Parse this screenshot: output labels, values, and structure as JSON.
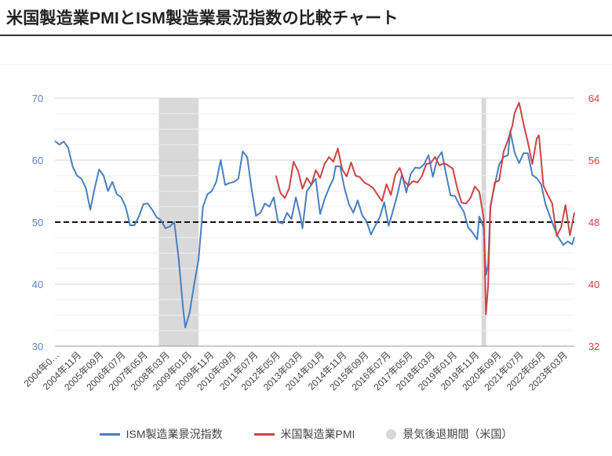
{
  "page_title": "米国製造業PMIとISM製造業景況指数の比較チャート",
  "colors": {
    "ism": "#4a7fc1",
    "pmi": "#cc4444",
    "recession": "#d9d9d9",
    "threshold": "#111111"
  },
  "chart_data": {
    "type": "line",
    "title": "米国製造業PMIとISM製造業景況指数の比較チャート",
    "x_start": "2004-01",
    "x_end": "2023-08",
    "x_tick_labels": [
      "2004年0…",
      "2004年11月",
      "2005年09月",
      "2006年07月",
      "2007年05月",
      "2008年03月",
      "2009年01月",
      "2009年11月",
      "2010年09月",
      "2011年07月",
      "2012年05月",
      "2013年03月",
      "2014年01月",
      "2014年11月",
      "2015年09月",
      "2016年07月",
      "2017年05月",
      "2018年03月",
      "2019年01月",
      "2019年11月",
      "2020年09月",
      "2021年07月",
      "2022年05月",
      "2023年03月"
    ],
    "x_tick_months": [
      "2004-01",
      "2004-11",
      "2005-09",
      "2006-07",
      "2007-05",
      "2008-03",
      "2009-01",
      "2009-11",
      "2010-09",
      "2011-07",
      "2012-05",
      "2013-03",
      "2014-01",
      "2014-11",
      "2015-09",
      "2016-07",
      "2017-05",
      "2018-03",
      "2019-01",
      "2019-11",
      "2020-09",
      "2021-07",
      "2022-05",
      "2023-03"
    ],
    "y_left": {
      "ticks": [
        30,
        40,
        50,
        60,
        70
      ],
      "ylim": [
        30,
        70
      ]
    },
    "y_right": {
      "ticks": [
        32,
        40,
        48,
        56,
        64
      ],
      "ylim": [
        32,
        64
      ]
    },
    "grid": true,
    "threshold_line": {
      "axis": "left",
      "value": 50,
      "style": "dashed"
    },
    "recession_periods": [
      {
        "start": "2007-12",
        "end": "2009-06"
      },
      {
        "start": "2020-02",
        "end": "2020-04"
      }
    ],
    "series": [
      {
        "name": "ISM製造業景況指数",
        "axis": "left",
        "points": [
          [
            "2004-01",
            63.1
          ],
          [
            "2004-03",
            62.5
          ],
          [
            "2004-05",
            63.0
          ],
          [
            "2004-07",
            62.0
          ],
          [
            "2004-09",
            59.0
          ],
          [
            "2004-11",
            57.5
          ],
          [
            "2005-01",
            57.0
          ],
          [
            "2005-03",
            55.5
          ],
          [
            "2005-05",
            52.0
          ],
          [
            "2005-07",
            55.5
          ],
          [
            "2005-09",
            58.5
          ],
          [
            "2005-11",
            57.5
          ],
          [
            "2006-01",
            55.0
          ],
          [
            "2006-03",
            56.5
          ],
          [
            "2006-05",
            54.5
          ],
          [
            "2006-07",
            54.0
          ],
          [
            "2006-09",
            52.5
          ],
          [
            "2006-11",
            49.5
          ],
          [
            "2007-01",
            49.5
          ],
          [
            "2007-03",
            50.9
          ],
          [
            "2007-05",
            52.9
          ],
          [
            "2007-07",
            53.0
          ],
          [
            "2007-09",
            52.0
          ],
          [
            "2007-11",
            50.8
          ],
          [
            "2008-01",
            50.3
          ],
          [
            "2008-03",
            49.0
          ],
          [
            "2008-05",
            49.3
          ],
          [
            "2008-07",
            50.0
          ],
          [
            "2008-09",
            44.0
          ],
          [
            "2008-11",
            36.0
          ],
          [
            "2008-12",
            33.0
          ],
          [
            "2009-02",
            35.5
          ],
          [
            "2009-04",
            40.0
          ],
          [
            "2009-06",
            44.0
          ],
          [
            "2009-08",
            52.5
          ],
          [
            "2009-10",
            54.5
          ],
          [
            "2009-12",
            55.0
          ],
          [
            "2010-02",
            56.5
          ],
          [
            "2010-04",
            60.0
          ],
          [
            "2010-06",
            56.0
          ],
          [
            "2010-08",
            56.3
          ],
          [
            "2010-10",
            56.5
          ],
          [
            "2010-12",
            57.0
          ],
          [
            "2011-02",
            61.4
          ],
          [
            "2011-04",
            60.5
          ],
          [
            "2011-06",
            55.3
          ],
          [
            "2011-08",
            51.0
          ],
          [
            "2011-10",
            51.5
          ],
          [
            "2011-12",
            53.0
          ],
          [
            "2012-02",
            52.5
          ],
          [
            "2012-04",
            54.0
          ],
          [
            "2012-06",
            50.0
          ],
          [
            "2012-08",
            49.8
          ],
          [
            "2012-10",
            51.5
          ],
          [
            "2012-12",
            50.5
          ],
          [
            "2013-02",
            54.0
          ],
          [
            "2013-04",
            51.0
          ],
          [
            "2013-05",
            49.0
          ],
          [
            "2013-07",
            55.0
          ],
          [
            "2013-09",
            56.0
          ],
          [
            "2013-11",
            57.0
          ],
          [
            "2014-01",
            51.3
          ],
          [
            "2014-03",
            53.7
          ],
          [
            "2014-05",
            55.5
          ],
          [
            "2014-07",
            57.0
          ],
          [
            "2014-08",
            59.0
          ],
          [
            "2014-10",
            59.0
          ],
          [
            "2014-12",
            55.5
          ],
          [
            "2015-02",
            52.9
          ],
          [
            "2015-04",
            51.5
          ],
          [
            "2015-06",
            53.5
          ],
          [
            "2015-08",
            51.1
          ],
          [
            "2015-10",
            50.1
          ],
          [
            "2015-12",
            48.0
          ],
          [
            "2016-02",
            49.5
          ],
          [
            "2016-04",
            50.8
          ],
          [
            "2016-06",
            53.2
          ],
          [
            "2016-08",
            49.4
          ],
          [
            "2016-10",
            51.9
          ],
          [
            "2016-12",
            54.5
          ],
          [
            "2017-02",
            57.7
          ],
          [
            "2017-04",
            54.8
          ],
          [
            "2017-06",
            57.8
          ],
          [
            "2017-08",
            58.8
          ],
          [
            "2017-10",
            58.7
          ],
          [
            "2017-12",
            59.3
          ],
          [
            "2018-02",
            60.8
          ],
          [
            "2018-04",
            57.3
          ],
          [
            "2018-06",
            60.2
          ],
          [
            "2018-08",
            61.3
          ],
          [
            "2018-10",
            57.7
          ],
          [
            "2018-12",
            54.3
          ],
          [
            "2019-02",
            54.2
          ],
          [
            "2019-04",
            52.8
          ],
          [
            "2019-06",
            51.7
          ],
          [
            "2019-08",
            49.1
          ],
          [
            "2019-10",
            48.3
          ],
          [
            "2019-12",
            47.2
          ],
          [
            "2020-01",
            50.9
          ],
          [
            "2020-03",
            49.1
          ],
          [
            "2020-04",
            41.5
          ],
          [
            "2020-05",
            43.1
          ],
          [
            "2020-06",
            52.6
          ],
          [
            "2020-08",
            56.0
          ],
          [
            "2020-10",
            59.3
          ],
          [
            "2020-12",
            60.5
          ],
          [
            "2021-02",
            60.8
          ],
          [
            "2021-03",
            64.7
          ],
          [
            "2021-05",
            61.2
          ],
          [
            "2021-07",
            59.5
          ],
          [
            "2021-09",
            61.1
          ],
          [
            "2021-11",
            61.1
          ],
          [
            "2022-01",
            57.6
          ],
          [
            "2022-03",
            57.1
          ],
          [
            "2022-05",
            56.1
          ],
          [
            "2022-07",
            52.8
          ],
          [
            "2022-09",
            50.9
          ],
          [
            "2022-11",
            49.0
          ],
          [
            "2023-01",
            47.4
          ],
          [
            "2023-03",
            46.3
          ],
          [
            "2023-05",
            46.9
          ],
          [
            "2023-07",
            46.4
          ],
          [
            "2023-08",
            47.6
          ]
        ]
      },
      {
        "name": "米国製造業PMI",
        "axis": "right",
        "points": [
          [
            "2012-05",
            54.0
          ],
          [
            "2012-07",
            51.8
          ],
          [
            "2012-09",
            51.1
          ],
          [
            "2012-11",
            52.4
          ],
          [
            "2013-01",
            55.8
          ],
          [
            "2013-03",
            54.6
          ],
          [
            "2013-05",
            52.3
          ],
          [
            "2013-07",
            53.7
          ],
          [
            "2013-09",
            52.8
          ],
          [
            "2013-11",
            54.7
          ],
          [
            "2014-01",
            53.7
          ],
          [
            "2014-03",
            55.5
          ],
          [
            "2014-05",
            56.4
          ],
          [
            "2014-07",
            55.8
          ],
          [
            "2014-09",
            57.5
          ],
          [
            "2014-11",
            54.8
          ],
          [
            "2015-01",
            53.9
          ],
          [
            "2015-03",
            55.7
          ],
          [
            "2015-05",
            54.0
          ],
          [
            "2015-07",
            53.8
          ],
          [
            "2015-09",
            53.1
          ],
          [
            "2015-11",
            52.8
          ],
          [
            "2016-01",
            52.4
          ],
          [
            "2016-03",
            51.5
          ],
          [
            "2016-05",
            50.7
          ],
          [
            "2016-07",
            52.9
          ],
          [
            "2016-09",
            51.5
          ],
          [
            "2016-11",
            54.1
          ],
          [
            "2017-01",
            55.0
          ],
          [
            "2017-03",
            53.3
          ],
          [
            "2017-05",
            52.7
          ],
          [
            "2017-07",
            53.3
          ],
          [
            "2017-09",
            53.1
          ],
          [
            "2017-11",
            53.9
          ],
          [
            "2018-01",
            55.5
          ],
          [
            "2018-03",
            55.6
          ],
          [
            "2018-05",
            56.4
          ],
          [
            "2018-07",
            55.3
          ],
          [
            "2018-09",
            55.6
          ],
          [
            "2018-11",
            55.3
          ],
          [
            "2019-01",
            54.9
          ],
          [
            "2019-03",
            52.4
          ],
          [
            "2019-05",
            50.5
          ],
          [
            "2019-07",
            50.4
          ],
          [
            "2019-09",
            51.1
          ],
          [
            "2019-11",
            52.6
          ],
          [
            "2020-01",
            51.9
          ],
          [
            "2020-03",
            48.5
          ],
          [
            "2020-04",
            36.1
          ],
          [
            "2020-05",
            39.8
          ],
          [
            "2020-06",
            49.8
          ],
          [
            "2020-08",
            53.1
          ],
          [
            "2020-10",
            53.4
          ],
          [
            "2020-12",
            57.1
          ],
          [
            "2021-02",
            58.6
          ],
          [
            "2021-04",
            60.5
          ],
          [
            "2021-05",
            62.1
          ],
          [
            "2021-07",
            63.4
          ],
          [
            "2021-09",
            60.7
          ],
          [
            "2021-11",
            58.3
          ],
          [
            "2022-01",
            55.5
          ],
          [
            "2022-03",
            58.8
          ],
          [
            "2022-04",
            59.2
          ],
          [
            "2022-06",
            52.7
          ],
          [
            "2022-08",
            51.5
          ],
          [
            "2022-10",
            50.4
          ],
          [
            "2022-12",
            46.2
          ],
          [
            "2023-02",
            47.3
          ],
          [
            "2023-04",
            50.2
          ],
          [
            "2023-06",
            46.3
          ],
          [
            "2023-08",
            49.2
          ]
        ]
      }
    ]
  },
  "legend": {
    "ism": "ISM製造業景況指数",
    "pmi": "米国製造業PMI",
    "recession": "景気後退期間（米国）"
  }
}
